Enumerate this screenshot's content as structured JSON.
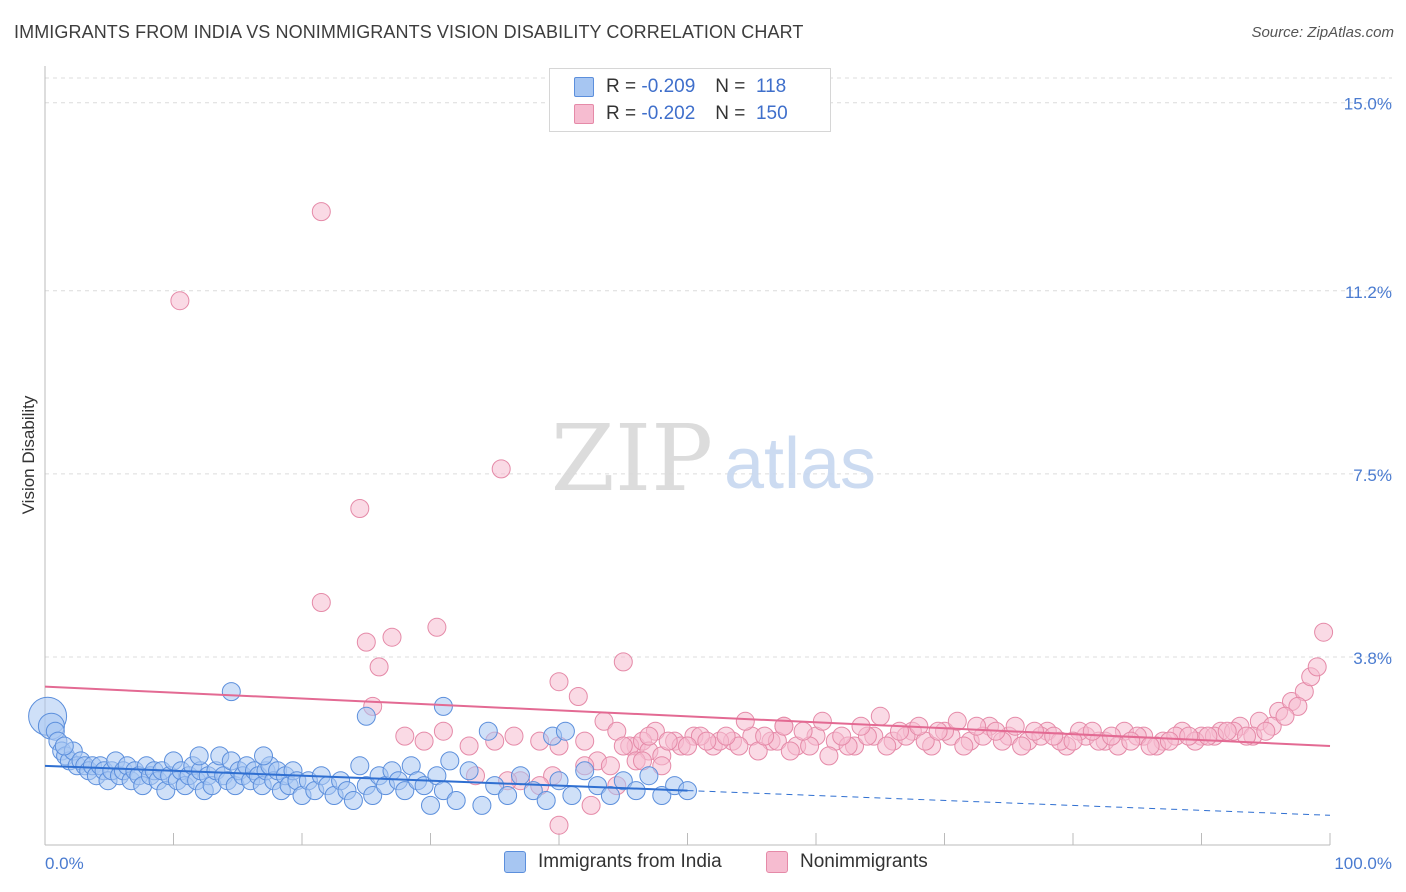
{
  "header": {
    "title": "IMMIGRANTS FROM INDIA VS NONIMMIGRANTS VISION DISABILITY CORRELATION CHART",
    "source": "Source: ZipAtlas.com"
  },
  "watermark": {
    "zip": "ZIP",
    "atlas": "atlas"
  },
  "legend": {
    "rows": [
      {
        "r_label": "R =",
        "r_value": "-0.209",
        "n_label": "N =",
        "n_value": "118"
      },
      {
        "r_label": "R =",
        "r_value": "-0.202",
        "n_label": "N =",
        "n_value": "150"
      }
    ]
  },
  "colors": {
    "blue_fill": "#a7c6f2",
    "blue_stroke": "#5c8fdc",
    "blue_line": "#2f6fd1",
    "pink_fill": "#f6bcd0",
    "pink_stroke": "#e58aa8",
    "pink_line": "#e36a93",
    "tick_text": "#4a7bd0"
  },
  "chart_data": {
    "type": "scatter",
    "title": "IMMIGRANTS FROM INDIA VS NONIMMIGRANTS VISION DISABILITY CORRELATION CHART",
    "xlabel": "",
    "ylabel": "Vision Disability",
    "xlim": [
      0,
      100
    ],
    "ylim": [
      0,
      15.5
    ],
    "x_tick_labels": [
      "0.0%",
      "100.0%"
    ],
    "y_ticks": [
      {
        "value": 3.8,
        "label": "3.8%"
      },
      {
        "value": 7.5,
        "label": "7.5%"
      },
      {
        "value": 11.2,
        "label": "11.2%"
      },
      {
        "value": 15.0,
        "label": "15.0%"
      }
    ],
    "grid": true,
    "legend_position": "bottom",
    "series": [
      {
        "name": "Immigrants from India",
        "color": "#a7c6f2",
        "trend": {
          "x0": 0,
          "y0": 1.6,
          "x1": 50,
          "y1": 1.1,
          "dashed_to": 100,
          "dashed_y": 0.6
        },
        "points": [
          [
            0.2,
            2.6
          ],
          [
            0.5,
            2.4
          ],
          [
            0.8,
            2.3
          ],
          [
            1.0,
            2.1
          ],
          [
            1.3,
            1.9
          ],
          [
            1.6,
            1.8
          ],
          [
            1.9,
            1.7
          ],
          [
            2.2,
            1.9
          ],
          [
            2.5,
            1.6
          ],
          [
            2.8,
            1.7
          ],
          [
            3.1,
            1.6
          ],
          [
            3.4,
            1.5
          ],
          [
            3.7,
            1.6
          ],
          [
            4.0,
            1.4
          ],
          [
            4.3,
            1.6
          ],
          [
            4.6,
            1.5
          ],
          [
            4.9,
            1.3
          ],
          [
            5.2,
            1.5
          ],
          [
            5.5,
            1.7
          ],
          [
            5.8,
            1.4
          ],
          [
            6.1,
            1.5
          ],
          [
            6.4,
            1.6
          ],
          [
            6.7,
            1.3
          ],
          [
            7.0,
            1.5
          ],
          [
            7.3,
            1.4
          ],
          [
            7.6,
            1.2
          ],
          [
            7.9,
            1.6
          ],
          [
            8.2,
            1.4
          ],
          [
            8.5,
            1.5
          ],
          [
            8.8,
            1.3
          ],
          [
            9.1,
            1.5
          ],
          [
            9.4,
            1.1
          ],
          [
            9.7,
            1.4
          ],
          [
            10.0,
            1.7
          ],
          [
            10.3,
            1.3
          ],
          [
            10.6,
            1.5
          ],
          [
            10.9,
            1.2
          ],
          [
            11.2,
            1.4
          ],
          [
            11.5,
            1.6
          ],
          [
            11.8,
            1.3
          ],
          [
            12.1,
            1.5
          ],
          [
            12.4,
            1.1
          ],
          [
            12.7,
            1.4
          ],
          [
            13.0,
            1.2
          ],
          [
            13.3,
            1.5
          ],
          [
            13.6,
            1.8
          ],
          [
            13.9,
            1.4
          ],
          [
            14.2,
            1.3
          ],
          [
            14.5,
            1.7
          ],
          [
            14.8,
            1.2
          ],
          [
            15.1,
            1.5
          ],
          [
            15.4,
            1.4
          ],
          [
            15.7,
            1.6
          ],
          [
            16.0,
            1.3
          ],
          [
            16.3,
            1.5
          ],
          [
            16.6,
            1.4
          ],
          [
            16.9,
            1.2
          ],
          [
            17.2,
            1.5
          ],
          [
            17.5,
            1.6
          ],
          [
            17.8,
            1.3
          ],
          [
            18.1,
            1.5
          ],
          [
            18.4,
            1.1
          ],
          [
            18.7,
            1.4
          ],
          [
            19.0,
            1.2
          ],
          [
            19.3,
            1.5
          ],
          [
            19.6,
            1.3
          ],
          [
            20.0,
            1.0
          ],
          [
            20.5,
            1.3
          ],
          [
            21.0,
            1.1
          ],
          [
            21.5,
            1.4
          ],
          [
            22.0,
            1.2
          ],
          [
            22.5,
            1.0
          ],
          [
            23.0,
            1.3
          ],
          [
            23.5,
            1.1
          ],
          [
            24.0,
            0.9
          ],
          [
            24.5,
            1.6
          ],
          [
            25.0,
            1.2
          ],
          [
            25.5,
            1.0
          ],
          [
            26.0,
            1.4
          ],
          [
            26.5,
            1.2
          ],
          [
            27.0,
            1.5
          ],
          [
            27.5,
            1.3
          ],
          [
            28.0,
            1.1
          ],
          [
            28.5,
            1.6
          ],
          [
            29.0,
            1.3
          ],
          [
            29.5,
            1.2
          ],
          [
            30.0,
            0.8
          ],
          [
            30.5,
            1.4
          ],
          [
            31.0,
            1.1
          ],
          [
            31.5,
            1.7
          ],
          [
            32.0,
            0.9
          ],
          [
            33.0,
            1.5
          ],
          [
            34.0,
            0.8
          ],
          [
            35.0,
            1.2
          ],
          [
            36.0,
            1.0
          ],
          [
            37.0,
            1.4
          ],
          [
            38.0,
            1.1
          ],
          [
            39.0,
            0.9
          ],
          [
            40.0,
            1.3
          ],
          [
            41.0,
            1.0
          ],
          [
            42.0,
            1.5
          ],
          [
            43.0,
            1.2
          ],
          [
            44.0,
            1.0
          ],
          [
            45.0,
            1.3
          ],
          [
            46.0,
            1.1
          ],
          [
            47.0,
            1.4
          ],
          [
            48.0,
            1.0
          ],
          [
            49.0,
            1.2
          ],
          [
            50.0,
            1.1
          ],
          [
            1.5,
            2.0
          ],
          [
            14.5,
            3.1
          ],
          [
            25.0,
            2.6
          ],
          [
            31.0,
            2.8
          ],
          [
            34.5,
            2.3
          ],
          [
            39.5,
            2.2
          ],
          [
            40.5,
            2.3
          ],
          [
            12.0,
            1.8
          ],
          [
            17.0,
            1.8
          ]
        ]
      },
      {
        "name": "Nonimmigrants",
        "color": "#f6bcd0",
        "trend": {
          "x0": 0,
          "y0": 3.2,
          "x1": 100,
          "y1": 2.0
        },
        "points": [
          [
            10.5,
            11.0
          ],
          [
            21.5,
            12.8
          ],
          [
            24.5,
            6.8
          ],
          [
            35.5,
            7.6
          ],
          [
            21.5,
            4.9
          ],
          [
            25.0,
            4.1
          ],
          [
            27.0,
            4.2
          ],
          [
            30.5,
            4.4
          ],
          [
            26.0,
            3.6
          ],
          [
            40.0,
            3.3
          ],
          [
            41.5,
            3.0
          ],
          [
            45.0,
            3.7
          ],
          [
            25.5,
            2.8
          ],
          [
            28.0,
            2.2
          ],
          [
            29.5,
            2.1
          ],
          [
            31.0,
            2.3
          ],
          [
            33.0,
            2.0
          ],
          [
            35.0,
            2.1
          ],
          [
            36.5,
            2.2
          ],
          [
            38.5,
            2.1
          ],
          [
            40.0,
            2.0
          ],
          [
            42.0,
            2.1
          ],
          [
            43.5,
            2.5
          ],
          [
            44.5,
            2.3
          ],
          [
            46.0,
            2.0
          ],
          [
            47.5,
            2.3
          ],
          [
            49.0,
            2.1
          ],
          [
            50.5,
            2.2
          ],
          [
            52.0,
            2.0
          ],
          [
            53.5,
            2.1
          ],
          [
            55.0,
            2.2
          ],
          [
            56.5,
            2.1
          ],
          [
            57.5,
            2.4
          ],
          [
            58.5,
            2.0
          ],
          [
            60.0,
            2.2
          ],
          [
            61.5,
            2.1
          ],
          [
            63.0,
            2.0
          ],
          [
            64.5,
            2.2
          ],
          [
            66.0,
            2.1
          ],
          [
            67.5,
            2.3
          ],
          [
            69.0,
            2.0
          ],
          [
            70.5,
            2.2
          ],
          [
            72.0,
            2.1
          ],
          [
            73.5,
            2.4
          ],
          [
            75.0,
            2.2
          ],
          [
            76.5,
            2.1
          ],
          [
            78.0,
            2.3
          ],
          [
            79.5,
            2.0
          ],
          [
            81.0,
            2.2
          ],
          [
            82.5,
            2.1
          ],
          [
            84.0,
            2.3
          ],
          [
            85.5,
            2.2
          ],
          [
            87.0,
            2.1
          ],
          [
            88.5,
            2.3
          ],
          [
            90.0,
            2.2
          ],
          [
            91.5,
            2.3
          ],
          [
            93.0,
            2.4
          ],
          [
            94.5,
            2.5
          ],
          [
            96.0,
            2.7
          ],
          [
            97.0,
            2.9
          ],
          [
            98.0,
            3.1
          ],
          [
            98.5,
            3.4
          ],
          [
            99.0,
            3.6
          ],
          [
            99.5,
            4.3
          ],
          [
            45.5,
            2.0
          ],
          [
            46.5,
            2.1
          ],
          [
            47.0,
            1.9
          ],
          [
            48.0,
            1.8
          ],
          [
            49.5,
            2.0
          ],
          [
            51.0,
            2.2
          ],
          [
            52.5,
            2.1
          ],
          [
            54.0,
            2.0
          ],
          [
            55.5,
            1.9
          ],
          [
            57.0,
            2.1
          ],
          [
            58.0,
            1.9
          ],
          [
            59.5,
            2.0
          ],
          [
            61.0,
            1.8
          ],
          [
            62.5,
            2.0
          ],
          [
            64.0,
            2.2
          ],
          [
            65.5,
            2.0
          ],
          [
            67.0,
            2.2
          ],
          [
            68.5,
            2.1
          ],
          [
            70.0,
            2.3
          ],
          [
            71.5,
            2.0
          ],
          [
            73.0,
            2.2
          ],
          [
            74.5,
            2.1
          ],
          [
            76.0,
            2.0
          ],
          [
            77.5,
            2.2
          ],
          [
            79.0,
            2.1
          ],
          [
            80.5,
            2.3
          ],
          [
            82.0,
            2.1
          ],
          [
            83.5,
            2.0
          ],
          [
            85.0,
            2.2
          ],
          [
            86.5,
            2.0
          ],
          [
            88.0,
            2.2
          ],
          [
            89.5,
            2.1
          ],
          [
            91.0,
            2.2
          ],
          [
            92.5,
            2.3
          ],
          [
            94.0,
            2.2
          ],
          [
            95.5,
            2.4
          ],
          [
            97.5,
            2.8
          ],
          [
            96.5,
            2.6
          ],
          [
            95.0,
            2.3
          ],
          [
            93.5,
            2.2
          ],
          [
            92.0,
            2.3
          ],
          [
            90.5,
            2.2
          ],
          [
            89.0,
            2.2
          ],
          [
            87.5,
            2.1
          ],
          [
            86.0,
            2.0
          ],
          [
            84.5,
            2.1
          ],
          [
            83.0,
            2.2
          ],
          [
            81.5,
            2.3
          ],
          [
            80.0,
            2.1
          ],
          [
            78.5,
            2.2
          ],
          [
            77.0,
            2.3
          ],
          [
            75.5,
            2.4
          ],
          [
            74.0,
            2.3
          ],
          [
            72.5,
            2.4
          ],
          [
            71.0,
            2.5
          ],
          [
            69.5,
            2.3
          ],
          [
            68.0,
            2.4
          ],
          [
            66.5,
            2.3
          ],
          [
            65.0,
            2.6
          ],
          [
            63.5,
            2.4
          ],
          [
            62.0,
            2.2
          ],
          [
            60.5,
            2.5
          ],
          [
            59.0,
            2.3
          ],
          [
            57.5,
            2.4
          ],
          [
            56.0,
            2.2
          ],
          [
            54.5,
            2.5
          ],
          [
            53.0,
            2.2
          ],
          [
            51.5,
            2.1
          ],
          [
            50.0,
            2.0
          ],
          [
            48.5,
            2.1
          ],
          [
            47.0,
            2.2
          ],
          [
            45.0,
            2.0
          ],
          [
            43.0,
            1.7
          ],
          [
            44.0,
            1.6
          ],
          [
            46.0,
            1.7
          ],
          [
            48.0,
            1.6
          ],
          [
            33.5,
            1.4
          ],
          [
            37.0,
            1.3
          ],
          [
            42.5,
            0.8
          ],
          [
            44.5,
            1.2
          ],
          [
            46.5,
            1.7
          ],
          [
            39.5,
            1.4
          ],
          [
            36.0,
            1.3
          ],
          [
            38.5,
            1.2
          ],
          [
            42.0,
            1.6
          ],
          [
            40.0,
            0.4
          ]
        ]
      }
    ]
  },
  "bottom_legend": {
    "items": [
      {
        "label": "Immigrants from India"
      },
      {
        "label": "Nonimmigrants"
      }
    ]
  }
}
